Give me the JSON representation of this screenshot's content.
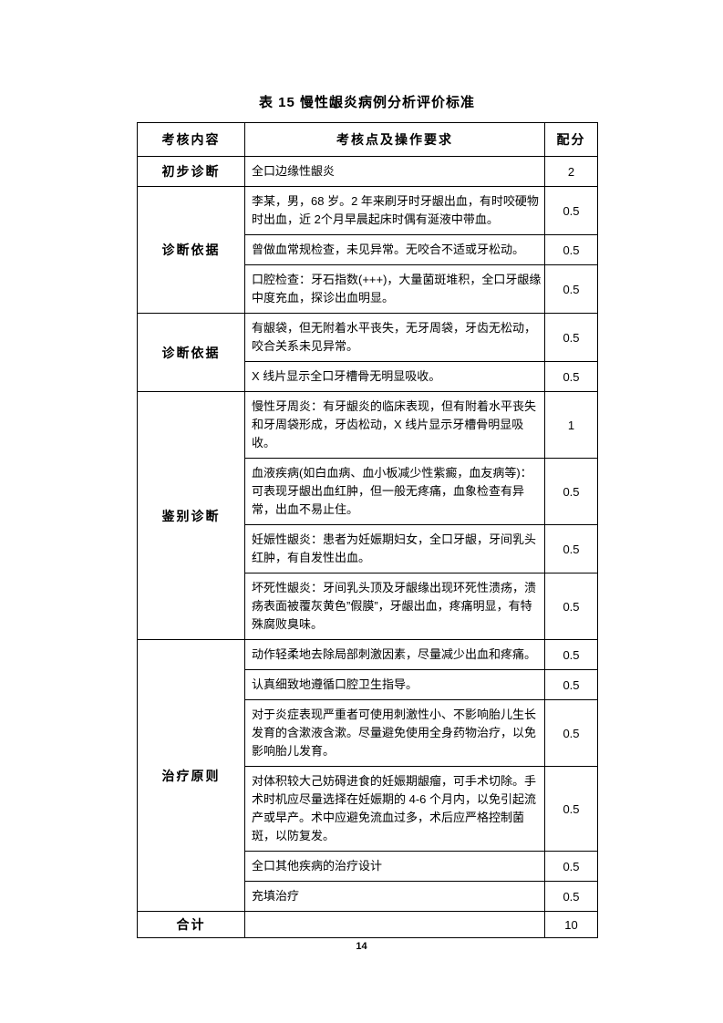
{
  "page": {
    "title": "表 15 慢性龈炎病例分析评价标准",
    "page_number": "14"
  },
  "table": {
    "headers": {
      "content": "考核内容",
      "points": "考核点及操作要求",
      "score": "配分"
    },
    "groups": [
      {
        "label": "初步诊断",
        "rows": [
          {
            "text": "全口边缘性龈炎",
            "score": "2"
          }
        ]
      },
      {
        "label": "诊断依据",
        "rows": [
          {
            "text": "李某，男，68 岁。2 年来刷牙时牙龈出血，有时咬硬物时出血，近 2个月早晨起床时偶有涎液中带血。",
            "score": "0.5"
          },
          {
            "text": "曾做血常规检查，未见异常。无咬合不适或牙松动。",
            "score": "0.5"
          },
          {
            "text": "口腔检查：牙石指数(+++)，大量菌斑堆积，全口牙龈缘中度充血，探诊出血明显。",
            "score": "0.5"
          }
        ]
      },
      {
        "label": "诊断依据",
        "rows": [
          {
            "text": "有龈袋，但无附着水平丧失，无牙周袋，牙齿无松动，咬合关系未见异常。",
            "score": "0.5"
          },
          {
            "text": "X 线片显示全口牙槽骨无明显吸收。",
            "score": "0.5"
          }
        ]
      },
      {
        "label": "鉴别诊断",
        "rows": [
          {
            "text": "慢性牙周炎：有牙龈炎的临床表现，但有附着水平丧失和牙周袋形成，牙齿松动，X 线片显示牙槽骨明显吸收。",
            "score": "1"
          },
          {
            "text": "血液疾病(如白血病、血小板减少性紫癜，血友病等)：可表现牙龈出血红肿，但一般无疼痛，血象检查有异常，出血不易止住。",
            "score": "0.5"
          },
          {
            "text": "妊娠性龈炎：患者为妊娠期妇女，全口牙龈，牙间乳头红肿，有自发性出血。",
            "score": "0.5"
          },
          {
            "text": "坏死性龈炎：牙间乳头顶及牙龈缘出现环死性溃疡，溃疡表面被覆灰黄色”假膜”，牙龈出血，疼痛明显，有特殊腐败臭味。",
            "score": "0.5"
          }
        ]
      },
      {
        "label": "治疗原则",
        "rows": [
          {
            "text": "动作轻柔地去除局部刺激因素，尽量减少出血和疼痛。",
            "score": "0.5"
          },
          {
            "text": "认真细致地遵循口腔卫生指导。",
            "score": "0.5"
          },
          {
            "text": "对于炎症表现严重者可使用刺激性小、不影响胎儿生长发育的含漱液含漱。尽量避免使用全身药物治疗，以免影响胎儿发育。",
            "score": "0.5"
          },
          {
            "text": "对体积较大己妨碍进食的妊娠期龈瘤，可手术切除。手术时机应尽量选择在妊娠期的 4-6 个月内，以免引起流产或早产。术中应避免流血过多，术后应严格控制菌斑，以防复发。",
            "score": "0.5"
          },
          {
            "text": "全口其他疾病的治疗设计",
            "score": "0.5"
          },
          {
            "text": "充填治疗",
            "score": "0.5"
          }
        ]
      },
      {
        "label": "合计",
        "rows": [
          {
            "text": "",
            "score": "10"
          }
        ]
      }
    ]
  }
}
